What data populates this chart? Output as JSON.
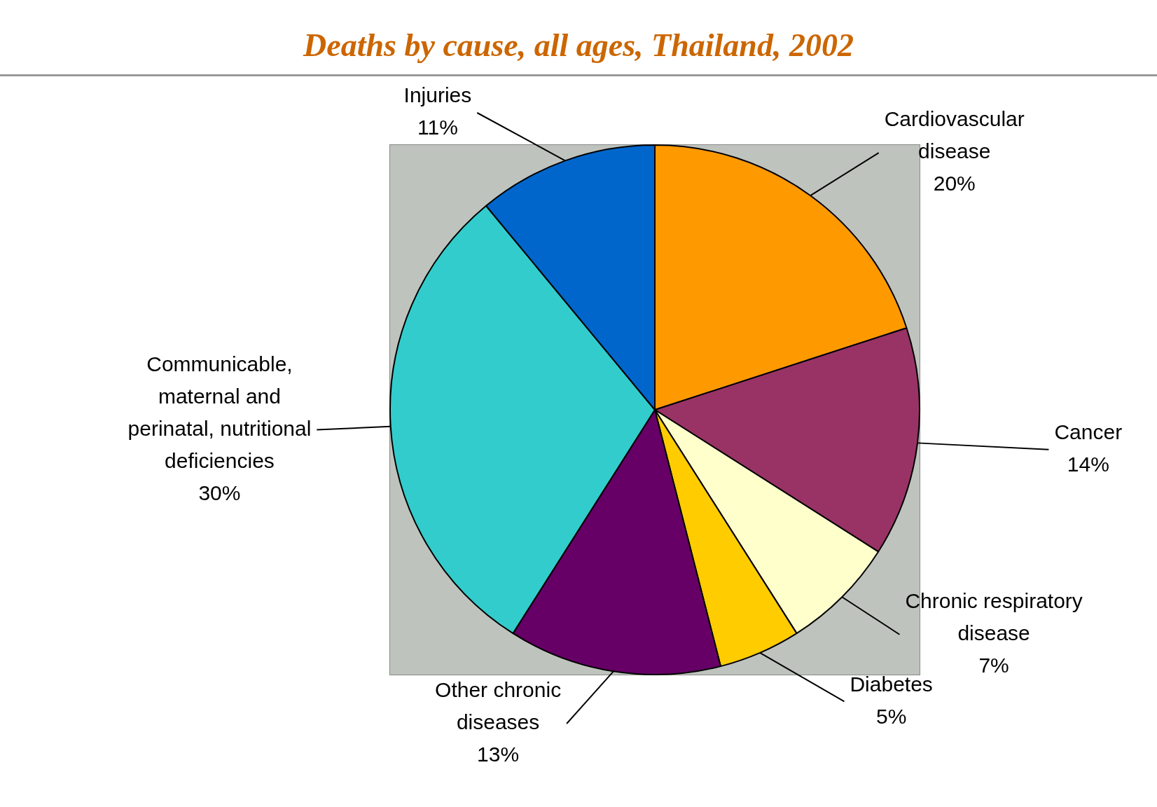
{
  "chart_data": {
    "type": "pie",
    "title": "Deaths by cause, all ages, Thailand, 2002",
    "categories": [
      "Cardiovascular disease",
      "Cancer",
      "Chronic respiratory disease",
      "Diabetes",
      "Other chronic diseases",
      "Communicable, maternal and perinatal, nutritional deficiencies",
      "Injuries"
    ],
    "values": [
      20,
      14,
      7,
      5,
      13,
      30,
      11
    ],
    "colors": [
      "#ff9900",
      "#993366",
      "#ffffcc",
      "#ffcc00",
      "#660066",
      "#33cccc",
      "#0066cc"
    ],
    "value_labels": [
      "20%",
      "14%",
      "7%",
      "5%",
      "13%",
      "30%",
      "11%"
    ],
    "legend": false
  }
}
